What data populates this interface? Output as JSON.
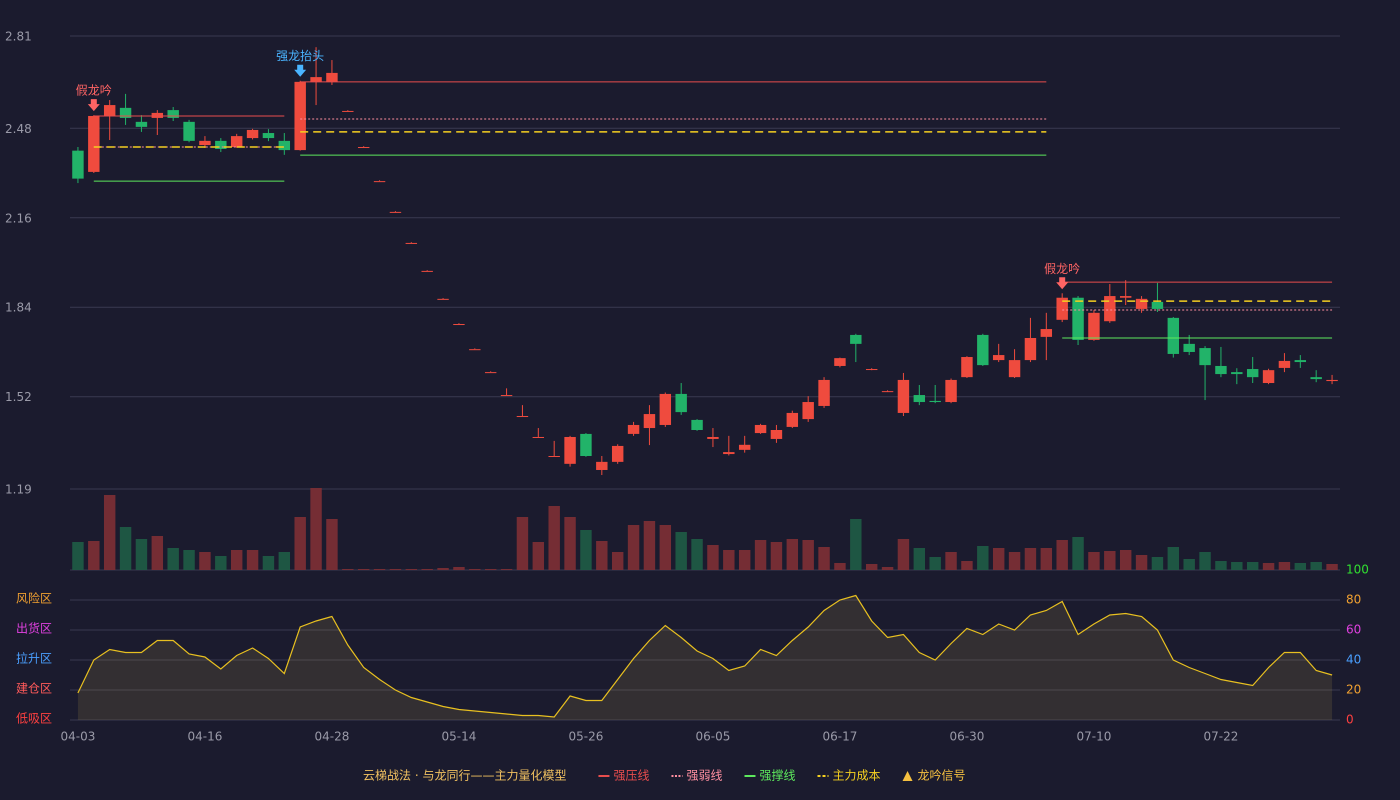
{
  "chart_data": {
    "type": "candlestick",
    "categories": [
      "04-03",
      null,
      null,
      null,
      null,
      null,
      null,
      null,
      "04-16",
      null,
      null,
      null,
      null,
      null,
      null,
      null,
      "04-28",
      null,
      null,
      null,
      null,
      null,
      null,
      null,
      "05-14",
      null,
      null,
      null,
      null,
      null,
      null,
      null,
      "05-26",
      null,
      null,
      null,
      null,
      null,
      null,
      null,
      "06-05",
      null,
      null,
      null,
      null,
      null,
      null,
      null,
      "06-17",
      null,
      null,
      null,
      null,
      null,
      null,
      null,
      "06-30",
      null,
      null,
      null,
      null,
      null,
      null,
      null,
      "07-10",
      null,
      null,
      null,
      null,
      null,
      null,
      null,
      "07-22",
      null,
      null,
      null,
      null,
      null,
      null,
      null
    ],
    "open": [
      2.4,
      2.324,
      2.524,
      2.553,
      2.503,
      2.517,
      2.545,
      2.503,
      2.42,
      2.435,
      2.413,
      2.445,
      2.463,
      2.435,
      2.402,
      2.646,
      2.646,
      2.542,
      2.413,
      2.291,
      2.181,
      2.07,
      1.97,
      1.87,
      1.78,
      1.69,
      1.608,
      1.526,
      1.451,
      1.376,
      1.308,
      1.28,
      1.387,
      1.258,
      1.287,
      1.387,
      1.408,
      1.419,
      1.53,
      1.437,
      1.369,
      1.315,
      1.33,
      1.39,
      1.369,
      1.412,
      1.44,
      1.487,
      1.63,
      1.741,
      1.619,
      1.54,
      1.462,
      1.526,
      1.505,
      1.501,
      1.59,
      1.741,
      1.651,
      1.59,
      1.651,
      1.734,
      1.795,
      1.874,
      1.723,
      1.79,
      1.874,
      1.834,
      1.859,
      1.802,
      1.709,
      1.694,
      1.63,
      1.608,
      1.619,
      1.569,
      1.623,
      1.651,
      1.59,
      1.576
    ],
    "high": [
      2.413,
      2.527,
      2.581,
      2.603,
      2.527,
      2.545,
      2.556,
      2.51,
      2.452,
      2.445,
      2.46,
      2.478,
      2.477,
      2.463,
      2.65,
      2.77,
      2.724,
      2.545,
      2.416,
      2.294,
      2.184,
      2.073,
      1.973,
      1.873,
      1.783,
      1.693,
      1.611,
      1.55,
      1.49,
      1.408,
      1.362,
      1.38,
      1.39,
      1.308,
      1.35,
      1.43,
      1.49,
      1.535,
      1.569,
      1.44,
      1.408,
      1.38,
      1.38,
      1.423,
      1.419,
      1.47,
      1.522,
      1.59,
      1.66,
      1.745,
      1.622,
      1.543,
      1.605,
      1.562,
      1.562,
      1.585,
      1.665,
      1.745,
      1.709,
      1.69,
      1.802,
      1.82,
      1.89,
      1.88,
      1.83,
      1.923,
      1.937,
      1.88,
      1.927,
      1.805,
      1.741,
      1.701,
      1.698,
      1.622,
      1.662,
      1.62,
      1.676,
      1.669,
      1.615,
      1.598
    ],
    "low": [
      2.284,
      2.32,
      2.438,
      2.492,
      2.467,
      2.456,
      2.506,
      2.43,
      2.41,
      2.395,
      2.41,
      2.44,
      2.434,
      2.385,
      2.4,
      2.563,
      2.635,
      2.542,
      2.413,
      2.291,
      2.181,
      2.07,
      1.97,
      1.87,
      1.78,
      1.69,
      1.608,
      1.526,
      1.451,
      1.376,
      1.308,
      1.27,
      1.305,
      1.24,
      1.28,
      1.38,
      1.347,
      1.412,
      1.455,
      1.398,
      1.34,
      1.31,
      1.32,
      1.387,
      1.355,
      1.408,
      1.43,
      1.48,
      1.625,
      1.644,
      1.615,
      1.537,
      1.451,
      1.49,
      1.497,
      1.497,
      1.587,
      1.63,
      1.644,
      1.587,
      1.644,
      1.651,
      1.787,
      1.705,
      1.72,
      1.784,
      1.848,
      1.82,
      1.823,
      1.66,
      1.669,
      1.508,
      1.59,
      1.565,
      1.569,
      1.565,
      1.608,
      1.623,
      1.572,
      1.565
    ],
    "close": [
      2.3,
      2.524,
      2.563,
      2.517,
      2.485,
      2.535,
      2.517,
      2.435,
      2.435,
      2.406,
      2.452,
      2.474,
      2.445,
      2.402,
      2.646,
      2.663,
      2.678,
      2.542,
      2.413,
      2.291,
      2.181,
      2.07,
      1.97,
      1.87,
      1.78,
      1.69,
      1.608,
      1.526,
      1.451,
      1.376,
      1.308,
      1.376,
      1.308,
      1.287,
      1.344,
      1.419,
      1.458,
      1.53,
      1.465,
      1.401,
      1.376,
      1.322,
      1.348,
      1.419,
      1.401,
      1.462,
      1.501,
      1.58,
      1.658,
      1.709,
      1.619,
      1.54,
      1.58,
      1.501,
      1.501,
      1.58,
      1.662,
      1.633,
      1.669,
      1.651,
      1.73,
      1.762,
      1.874,
      1.723,
      1.82,
      1.88,
      1.88,
      1.87,
      1.834,
      1.673,
      1.68,
      1.633,
      1.601,
      1.601,
      1.59,
      1.615,
      1.648,
      1.644,
      1.583,
      1.58
    ],
    "volume": [
      28,
      29,
      75,
      43,
      31,
      34,
      22,
      20,
      18,
      14,
      20,
      20,
      14,
      18,
      53,
      82,
      51,
      1,
      1,
      1,
      1,
      1,
      1,
      2,
      3,
      1,
      1,
      1,
      53,
      28,
      64,
      53,
      40,
      29,
      18,
      45,
      49,
      45,
      38,
      31,
      25,
      20,
      20,
      30,
      28,
      31,
      30,
      23,
      7,
      51,
      6,
      3,
      31,
      22,
      13,
      18,
      9,
      24,
      22,
      18,
      22,
      22,
      30,
      33,
      18,
      19,
      20,
      15,
      13,
      23,
      11,
      18,
      9,
      8,
      8,
      7,
      8,
      7,
      8,
      6
    ],
    "up_color": "#ef4b3e",
    "down_color": "#22b369",
    "ylim": [
      1.19,
      2.81
    ],
    "yticks": [
      1.19,
      1.52,
      1.84,
      2.16,
      2.48,
      2.81
    ],
    "grid": true,
    "levels": [
      {
        "from": 1,
        "to": 13,
        "values": [
          2.524,
          2.413,
          2.291,
          2.413
        ]
      },
      {
        "from": 14,
        "to": 61,
        "values": [
          2.646,
          2.513,
          2.384,
          2.467
        ]
      },
      {
        "from": 62,
        "to": 79,
        "values": [
          1.93,
          1.83,
          1.73,
          1.862
        ]
      }
    ],
    "signals": [
      {
        "index": 1,
        "label": "假龙吟",
        "color": "#ff6464"
      },
      {
        "index": 14,
        "label": "强龙抬头",
        "color": "#4ab4ff"
      },
      {
        "index": 62,
        "label": "假龙吟",
        "color": "#ff6464"
      }
    ],
    "indicator": {
      "values": [
        18,
        40,
        47,
        45,
        45,
        53,
        53,
        44,
        42,
        34,
        43,
        48,
        41,
        31,
        62,
        66,
        69,
        50,
        35,
        27,
        20,
        15,
        12,
        9,
        7,
        6,
        5,
        4,
        3,
        3,
        2,
        16,
        13,
        13,
        27,
        41,
        53,
        63,
        55,
        46,
        41,
        33,
        36,
        47,
        43,
        53,
        62,
        73,
        80,
        83,
        66,
        55,
        57,
        45,
        40,
        51,
        61,
        57,
        64,
        60,
        70,
        73,
        79,
        57,
        64,
        70,
        71,
        69,
        60,
        40,
        35,
        31,
        27,
        25,
        23,
        35,
        45,
        45,
        33,
        30
      ],
      "color": "#e8c020",
      "y2lim": [
        0,
        100
      ],
      "y2ticks": [
        0,
        20,
        40,
        60,
        80,
        100
      ],
      "y2tick_colors": [
        "#ff4040",
        "#f0a030",
        "#4a9fff",
        "#e040e0",
        "#f0a030",
        "#30e030"
      ],
      "zones": [
        {
          "label": "风险区",
          "value": 80,
          "color": "#f0a030"
        },
        {
          "label": "出货区",
          "value": 60,
          "color": "#e040e0"
        },
        {
          "label": "拉升区",
          "value": 40,
          "color": "#4a9fff"
        },
        {
          "label": "建仓区",
          "value": 20,
          "color": "#ff5a5a"
        },
        {
          "label": "低吸区",
          "value": 0,
          "color": "#ff4040"
        }
      ]
    },
    "legend": {
      "title": "云梯战法 · 与龙同行——主力量化模型",
      "title_color": "#f0c060",
      "items": [
        {
          "name": "强压线",
          "color": "#e84d4d",
          "style": "solid"
        },
        {
          "name": "强弱线",
          "color": "#ff8fa0",
          "style": "dotted"
        },
        {
          "name": "强撑线",
          "color": "#5de85d",
          "style": "solid"
        },
        {
          "name": "主力成本",
          "color": "#f5d020",
          "style": "dashed"
        },
        {
          "name": "龙吟信号",
          "color": "#f5c040",
          "style": "triangle"
        }
      ]
    }
  }
}
